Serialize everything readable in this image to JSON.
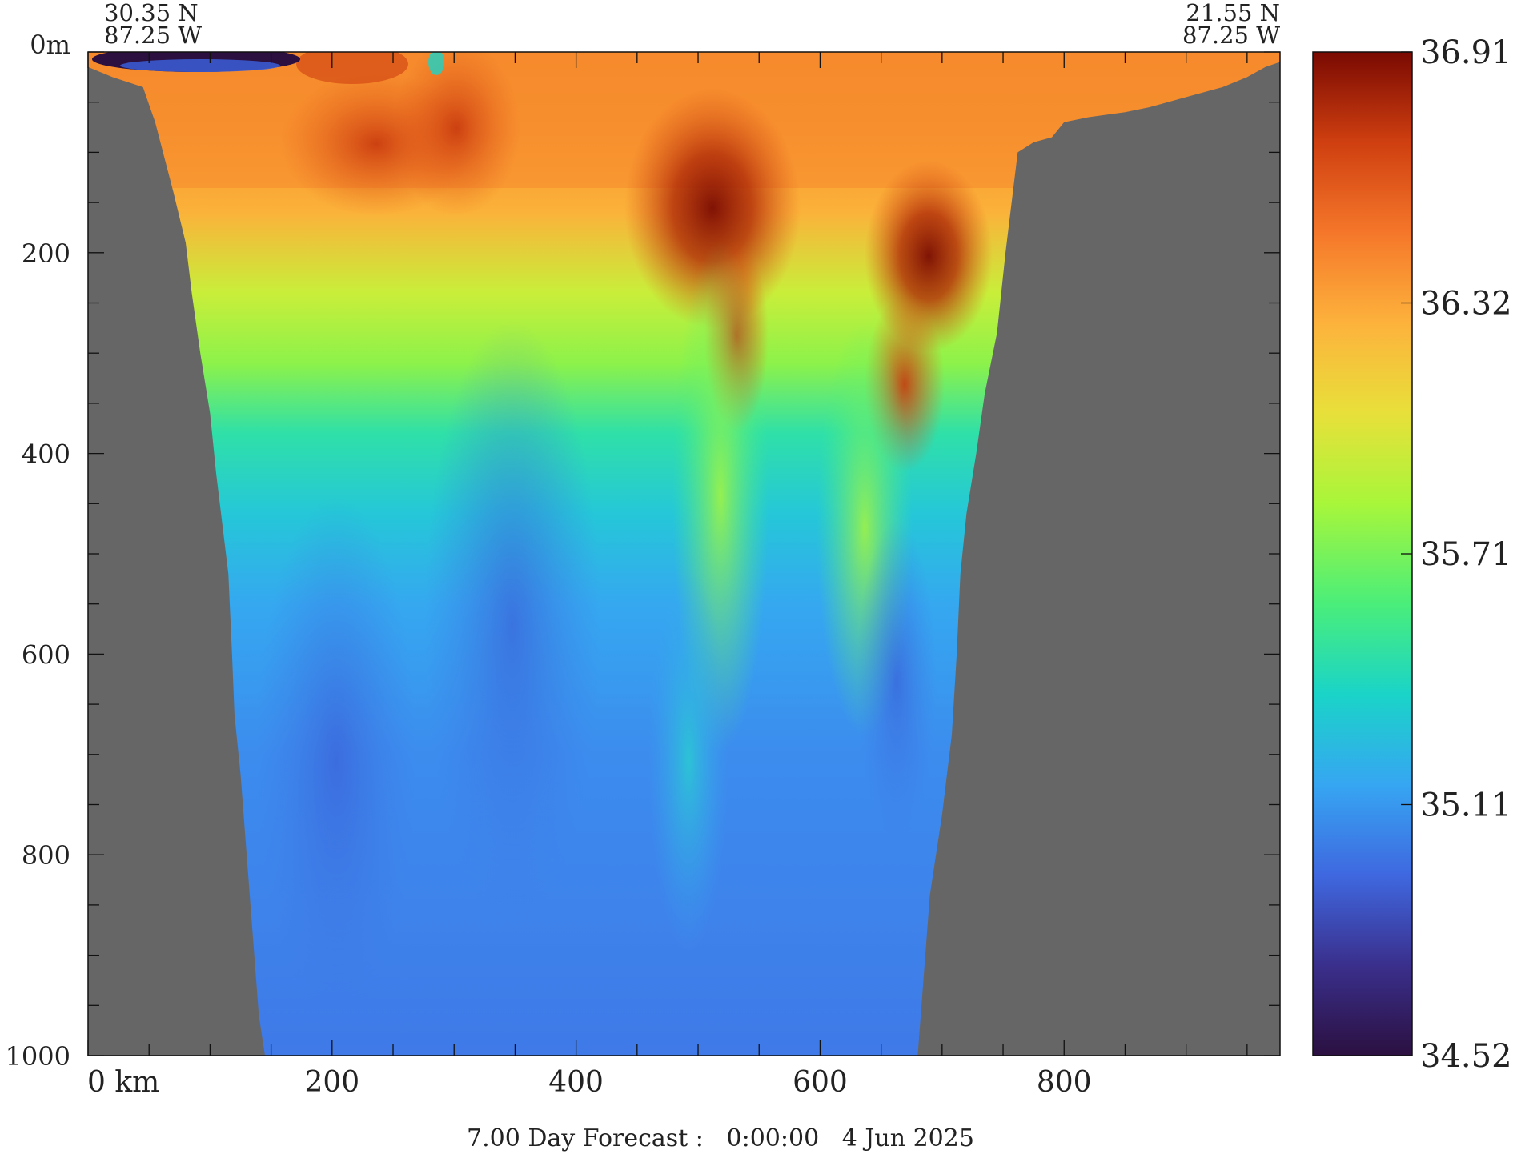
{
  "header": {
    "start_lat": "30.35 N",
    "start_lon": "87.25 W",
    "end_lat": "21.55 N",
    "end_lon": "87.25 W"
  },
  "footer": {
    "forecast_text": "7.00 Day Forecast :   0:00:00   4 Jun 2025"
  },
  "chart_data": {
    "type": "heatmap",
    "title": "",
    "xlabel": "",
    "ylabel": "",
    "x_unit_label": "km",
    "y_unit_label": "m",
    "xlim": [
      0,
      977
    ],
    "ylim": [
      0,
      1000
    ],
    "y_inverted": true,
    "x_ticks": [
      0,
      200,
      400,
      600,
      800
    ],
    "x_tick_labels": [
      "0 km",
      "200",
      "400",
      "600",
      "800"
    ],
    "x_minor_step": 50,
    "y_ticks": [
      0,
      200,
      400,
      600,
      800,
      1000
    ],
    "y_tick_labels": [
      "0m",
      "200",
      "400",
      "600",
      "800",
      "1000"
    ],
    "y_minor_step": 50,
    "land_color": "#666666",
    "bathymetry": {
      "description_units": "x in km, depth in m",
      "left_wall": [
        [
          0,
          15
        ],
        [
          20,
          25
        ],
        [
          45,
          35
        ],
        [
          55,
          70
        ],
        [
          70,
          140
        ],
        [
          80,
          190
        ],
        [
          85,
          240
        ],
        [
          92,
          300
        ],
        [
          100,
          360
        ],
        [
          105,
          420
        ],
        [
          110,
          470
        ],
        [
          115,
          520
        ],
        [
          118,
          600
        ],
        [
          120,
          660
        ],
        [
          125,
          720
        ],
        [
          130,
          800
        ],
        [
          135,
          880
        ],
        [
          140,
          960
        ],
        [
          145,
          1000
        ]
      ],
      "right_wall": [
        [
          680,
          1000
        ],
        [
          685,
          920
        ],
        [
          690,
          840
        ],
        [
          700,
          760
        ],
        [
          708,
          680
        ],
        [
          712,
          600
        ],
        [
          715,
          520
        ],
        [
          720,
          460
        ],
        [
          728,
          400
        ],
        [
          735,
          340
        ],
        [
          745,
          280
        ],
        [
          752,
          200
        ],
        [
          757,
          150
        ],
        [
          762,
          100
        ],
        [
          775,
          90
        ],
        [
          790,
          85
        ],
        [
          800,
          70
        ],
        [
          820,
          65
        ],
        [
          850,
          60
        ],
        [
          870,
          55
        ],
        [
          900,
          45
        ],
        [
          930,
          35
        ],
        [
          950,
          25
        ],
        [
          965,
          15
        ],
        [
          977,
          10
        ]
      ]
    },
    "colorbar": {
      "min": 34.52,
      "max": 36.91,
      "tick_labels": [
        "36.91",
        "36.32",
        "35.71",
        "35.11",
        "34.52"
      ],
      "stops": [
        "#2b1040",
        "#3a2f8c",
        "#3f68e0",
        "#36a6f2",
        "#1ad4c8",
        "#4aee7a",
        "#a8f63a",
        "#e8e03a",
        "#fdb23c",
        "#f5772a",
        "#cf3f10",
        "#7a0a02"
      ]
    },
    "section_fields": [
      {
        "x": 230,
        "depth": 120,
        "value": 36.55
      },
      {
        "x": 300,
        "depth": 100,
        "value": 36.6
      },
      {
        "x": 520,
        "depth": 180,
        "value": 36.75
      },
      {
        "x": 690,
        "depth": 210,
        "value": 36.8
      },
      {
        "x": 670,
        "depth": 380,
        "value": 36.55
      },
      {
        "x": 400,
        "depth": 600,
        "value": 34.95
      },
      {
        "x": 300,
        "depth": 800,
        "value": 34.95
      },
      {
        "x": 500,
        "depth": 900,
        "value": 35.15
      },
      {
        "x": 120,
        "depth": 8,
        "value": 34.55
      }
    ]
  }
}
